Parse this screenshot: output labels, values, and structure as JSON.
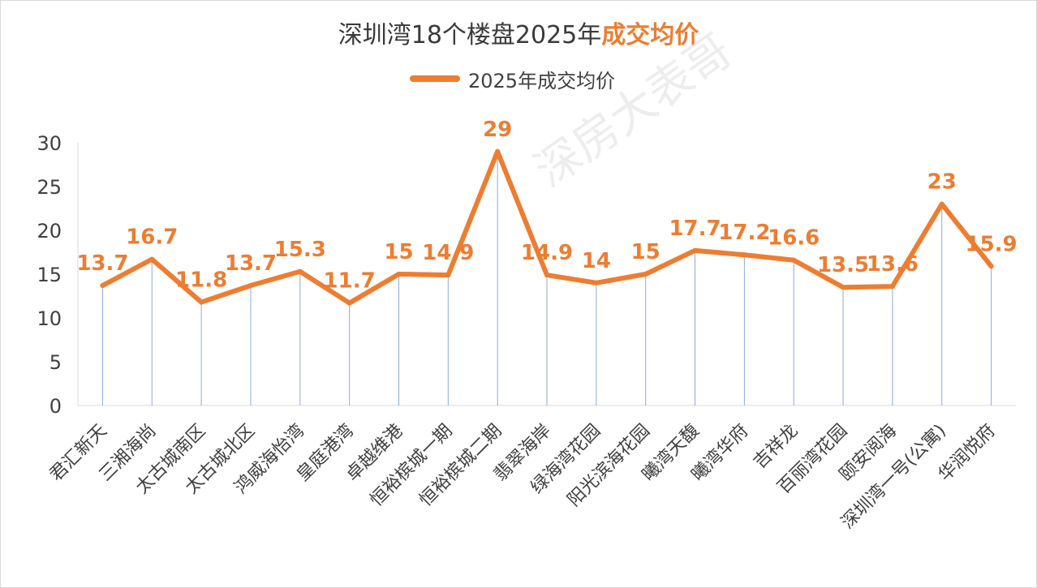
{
  "title": {
    "prefix": "深圳湾18个楼盘2025年",
    "highlight": "成交均价"
  },
  "watermark": "深房大表哥",
  "colors": {
    "line": "#ed7d31",
    "drop": "#8eaadb",
    "axis": "#d9d9d9"
  },
  "chart_data": {
    "type": "line",
    "title": "深圳湾18个楼盘2025年成交均价",
    "legend_position": "top",
    "grid": false,
    "ylim": [
      0,
      30
    ],
    "yticks": [
      0,
      5,
      10,
      15,
      20,
      25,
      30
    ],
    "categories": [
      "君汇新天",
      "三湘海尚",
      "太古城南区",
      "太古城北区",
      "鸿威海怡湾",
      "皇庭港湾",
      "卓越维港",
      "恒裕槟城一期",
      "恒裕槟城二期",
      "翡翠海岸",
      "绿海湾花园",
      "阳光滨海花园",
      "曦湾天馥",
      "曦湾华府",
      "吉祥龙",
      "百丽湾花园",
      "颐安阅海",
      "深圳湾一号(公寓)",
      "华润悦府"
    ],
    "series": [
      {
        "name": "2025年成交均价",
        "values": [
          13.7,
          16.7,
          11.8,
          13.7,
          15.3,
          11.7,
          15,
          14.9,
          29,
          14.9,
          14,
          15,
          17.7,
          17.2,
          16.6,
          13.5,
          13.6,
          23,
          15.9
        ]
      }
    ]
  }
}
